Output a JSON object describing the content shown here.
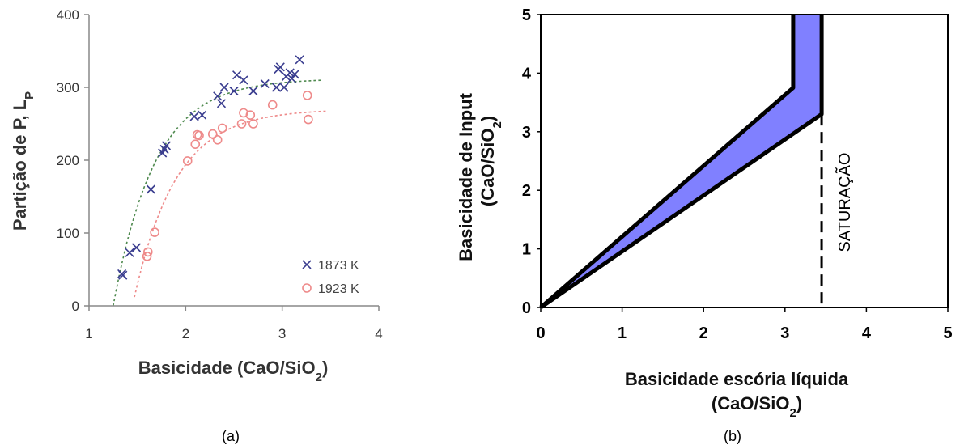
{
  "chart_data": [
    {
      "type": "scatter",
      "caption": "(a)",
      "xlabel": "Basicidade (CaO/SiO",
      "xlabel_sub": "2",
      "xlabel_end": ")",
      "ylabel": "Partição de P, L",
      "ylabel_sub": "P",
      "xlim": [
        1,
        4
      ],
      "ylim": [
        0,
        400
      ],
      "xticks": [
        "1",
        "2",
        "3",
        "4"
      ],
      "yticks": [
        "0",
        "100",
        "200",
        "300",
        "400"
      ],
      "legend_position": "bottom-right",
      "grid": false,
      "series": [
        {
          "name": "1873 K",
          "marker": "x",
          "color": "#3a3d8f",
          "points": [
            [
              1.34,
              44
            ],
            [
              1.35,
              42
            ],
            [
              1.42,
              73
            ],
            [
              1.49,
              80
            ],
            [
              1.64,
              160
            ],
            [
              1.76,
              210
            ],
            [
              1.78,
              215
            ],
            [
              1.8,
              220
            ],
            [
              2.09,
              260
            ],
            [
              2.17,
              262
            ],
            [
              2.33,
              288
            ],
            [
              2.37,
              278
            ],
            [
              2.4,
              300
            ],
            [
              2.5,
              295
            ],
            [
              2.53,
              317
            ],
            [
              2.6,
              310
            ],
            [
              2.7,
              295
            ],
            [
              2.82,
              305
            ],
            [
              2.94,
              300
            ],
            [
              2.96,
              325
            ],
            [
              2.98,
              328
            ],
            [
              3.02,
              300
            ],
            [
              3.04,
              315
            ],
            [
              3.08,
              320
            ],
            [
              3.1,
              312
            ],
            [
              3.13,
              318
            ],
            [
              3.18,
              338
            ]
          ]
        },
        {
          "name": "1923 K",
          "marker": "o",
          "color": "#ee8a8a",
          "points": [
            [
              1.6,
              68
            ],
            [
              1.61,
              74
            ],
            [
              1.68,
              101
            ],
            [
              2.02,
              199
            ],
            [
              2.1,
              222
            ],
            [
              2.12,
              235
            ],
            [
              2.14,
              234
            ],
            [
              2.28,
              236
            ],
            [
              2.33,
              228
            ],
            [
              2.38,
              244
            ],
            [
              2.58,
              250
            ],
            [
              2.6,
              265
            ],
            [
              2.67,
              262
            ],
            [
              2.7,
              250
            ],
            [
              2.9,
              276
            ],
            [
              3.26,
              289
            ],
            [
              3.27,
              256
            ]
          ]
        }
      ],
      "fit_lines": [
        {
          "series": "1873 K",
          "color": "#4f8a4f",
          "x0": 1.25,
          "x1": 3.4,
          "ymax": 312,
          "x_at_zero": 1.25,
          "rate": 2.3
        },
        {
          "series": "1923 K",
          "color": "#ee8a8a",
          "x0": 1.47,
          "x1": 3.45,
          "ymax": 270,
          "x_at_zero": 1.45,
          "rate": 2.3
        }
      ]
    },
    {
      "type": "area",
      "caption": "(b)",
      "xlabel_line1": "Basicidade escória líquida",
      "xlabel_line2": "(CaO/SiO",
      "xlabel_line2_sub": "2",
      "xlabel_line2_end": ")",
      "ylabel_line1": "Basicidade de Input",
      "ylabel_line2": "(CaO/SiO",
      "ylabel_line2_sub": "2",
      "ylabel_line2_end": ")",
      "xlim": [
        0,
        5
      ],
      "ylim": [
        0,
        5
      ],
      "xticks": [
        "0",
        "1",
        "2",
        "3",
        "4",
        "5"
      ],
      "yticks": [
        "0",
        "1",
        "2",
        "3",
        "4",
        "5"
      ],
      "fill_color": "#8080ff",
      "upper_boundary": [
        [
          0,
          0
        ],
        [
          3.1,
          3.75
        ],
        [
          3.1,
          5
        ]
      ],
      "lower_boundary": [
        [
          0,
          0
        ],
        [
          3.45,
          3.3
        ],
        [
          3.45,
          5
        ]
      ],
      "saturation_x": 3.45,
      "saturation_y_top": 3.3,
      "annotation": "SATURAÇÃO"
    }
  ]
}
